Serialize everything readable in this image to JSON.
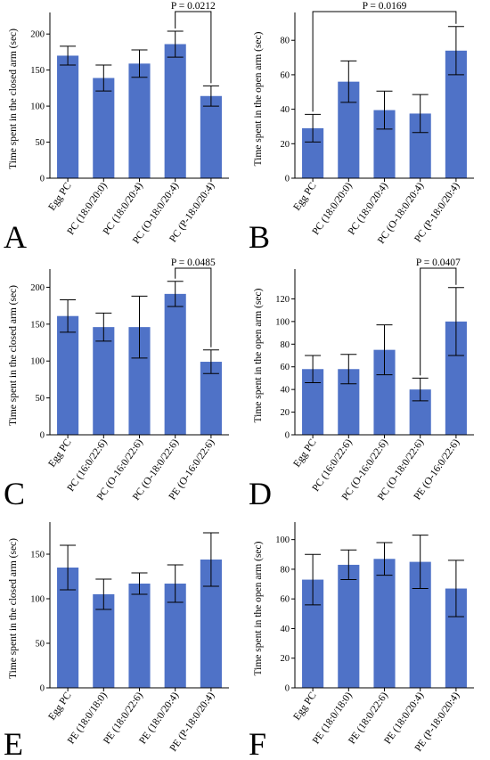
{
  "bar_color": "#4f72c7",
  "chart_data": [
    {
      "type": "bar",
      "panel_label": "A",
      "ylabel": "Time spent in the closed arm (sec)",
      "xlabel": "",
      "ylim": [
        0,
        220
      ],
      "yticks": [
        0,
        50,
        100,
        150,
        200
      ],
      "categories": [
        "Egg PC",
        "PC (18:0/20:0)",
        "PC (18:0/20:4)",
        "PC (O-18:0/20:4)",
        "PC (P-18:0/20:4)"
      ],
      "values": [
        170,
        139,
        159,
        186,
        114
      ],
      "errors": [
        13,
        18,
        19,
        18,
        14
      ],
      "significance": [
        {
          "from": 3,
          "to": 4,
          "label": "P = 0.0212"
        }
      ]
    },
    {
      "type": "bar",
      "panel_label": "B",
      "ylabel": "Time spent in the open arm (sec)",
      "xlabel": "",
      "ylim": [
        0,
        92
      ],
      "yticks": [
        0,
        20,
        40,
        60,
        80
      ],
      "categories": [
        "Egg PC",
        "PC (18:0/20:0)",
        "PC (18:0/20:4)",
        "PC (O-18:0/20:4)",
        "PC (P-18:0/20:4)"
      ],
      "values": [
        29,
        56,
        39.5,
        37.5,
        74
      ],
      "errors": [
        8,
        12,
        11,
        11,
        14
      ],
      "significance": [
        {
          "from": 0,
          "to": 4,
          "label": "P = 0.0169"
        }
      ]
    },
    {
      "type": "bar",
      "panel_label": "C",
      "ylabel": "Time spent in the closed arm (sec)",
      "xlabel": "",
      "ylim": [
        0,
        215
      ],
      "yticks": [
        0,
        50,
        100,
        150,
        200
      ],
      "categories": [
        "Egg PC",
        "PC (16:0/22:6)",
        "PC (O-16:0/22:6)",
        "PC (O-18:0/22:6)",
        "PE (O-16:0/22:6)"
      ],
      "values": [
        161,
        146,
        146,
        191,
        99
      ],
      "errors": [
        22,
        19,
        42,
        17,
        16
      ],
      "significance": [
        {
          "from": 3,
          "to": 4,
          "label": "P = 0.0485"
        }
      ]
    },
    {
      "type": "bar",
      "panel_label": "D",
      "ylabel": "Time spent in the open arm (sec)",
      "xlabel": "",
      "ylim": [
        0,
        140
      ],
      "yticks": [
        0,
        20,
        40,
        60,
        80,
        100,
        120
      ],
      "categories": [
        "Egg PC",
        "PC (16:0/22:6)",
        "PC (O-16:0/22:6)",
        "PC (O-18:0/22:6)",
        "PE (O-16:0/22:6)"
      ],
      "values": [
        58,
        58,
        75,
        40,
        100
      ],
      "errors": [
        12,
        13,
        22,
        10,
        30
      ],
      "significance": [
        {
          "from": 3,
          "to": 4,
          "label": "P = 0.0407"
        }
      ]
    },
    {
      "type": "bar",
      "panel_label": "E",
      "ylabel": "Time spent in the closed arm (sec)",
      "xlabel": "",
      "ylim": [
        0,
        178
      ],
      "yticks": [
        0,
        50,
        100,
        150
      ],
      "categories": [
        "Egg PC",
        "PE (18:0/18:0)",
        "PE (18:0/22:6)",
        "PE (18:0/20:4)",
        "PE (P-18:0/20:4)"
      ],
      "values": [
        135,
        105,
        117,
        117,
        144
      ],
      "errors": [
        25,
        17,
        12,
        21,
        30
      ],
      "significance": []
    },
    {
      "type": "bar",
      "panel_label": "F",
      "ylabel": "Time spent in the open arm (sec)",
      "xlabel": "",
      "ylim": [
        0,
        107
      ],
      "yticks": [
        0,
        20,
        40,
        60,
        80,
        100
      ],
      "categories": [
        "Egg PC",
        "PE (18:0/18:0)",
        "PE (18:0/22:6)",
        "PE (18:0/20:4)",
        "PE (P-18:0/20:4)"
      ],
      "values": [
        73,
        83,
        87,
        85,
        67
      ],
      "errors": [
        17,
        10,
        11,
        18,
        19
      ],
      "significance": []
    }
  ]
}
